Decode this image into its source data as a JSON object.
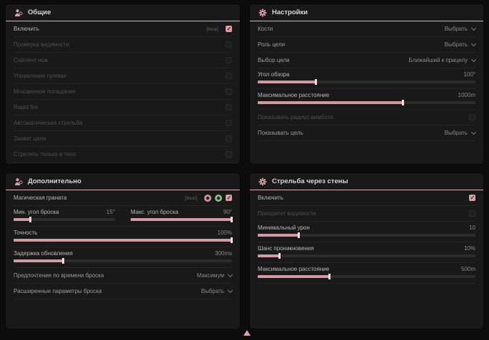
{
  "colors": {
    "accent": "#d79fa6",
    "accent_fill": "#d49ba2",
    "green_badge": "#82c47e",
    "panel_bg": "#191919",
    "page_bg": "#0c0c0c"
  },
  "general": {
    "title": "Общие",
    "items": [
      {
        "label": "Включить",
        "hint": "[вык]",
        "checked": true
      },
      {
        "label": "Проверка видимости",
        "checked": false
      },
      {
        "label": "Сайлент нож",
        "checked": false
      },
      {
        "label": "Управление пулями",
        "checked": false
      },
      {
        "label": "Мгновенное попадание",
        "checked": false
      },
      {
        "label": "Rapid fire",
        "checked": false
      },
      {
        "label": "Автоматическая стрельба",
        "checked": false
      },
      {
        "label": "Захват цели",
        "checked": false
      },
      {
        "label": "Стрелять только в тело",
        "checked": false
      }
    ]
  },
  "settings": {
    "title": "Настройки",
    "bones": {
      "label": "Кости",
      "value": "Выбрать"
    },
    "target_role": {
      "label": "Роль цели",
      "value": "Выбрать"
    },
    "target_select": {
      "label": "Выбор цели",
      "value": "Ближайший к прицелу"
    },
    "fov": {
      "label": "Угол обзора",
      "value": "100°",
      "percent": 27
    },
    "max_distance": {
      "label": "Максимальное расстояние",
      "value": "1000m",
      "percent": 67
    },
    "show_radius": {
      "label": "Показывать радиус аимбота",
      "checked": false
    },
    "show_target": {
      "label": "Показывать цель",
      "value": "Выбрать"
    }
  },
  "additional": {
    "title": "Дополнительно",
    "magic_grenade": {
      "label": "Магическая граната",
      "hint": "[вык]",
      "checked": true
    },
    "min_angle": {
      "label": "Мин. угол броска",
      "value": "15°",
      "percent": 17
    },
    "max_angle": {
      "label": "Макс. угол броска",
      "value": "90°",
      "percent": 100
    },
    "accuracy": {
      "label": "Точность",
      "value": "100%",
      "percent": 100
    },
    "update_delay": {
      "label": "Задержка обновления",
      "value": "300ms",
      "percent": 23
    },
    "throw_time_pref": {
      "label": "Предпочтение по времени броска",
      "value": "Максимум"
    },
    "advanced_throw": {
      "label": "Расширенные параметры броска",
      "value": "Выбрать"
    }
  },
  "wallbang": {
    "title": "Стрельба через стены",
    "enable": {
      "label": "Включить",
      "checked": true
    },
    "visibility_priority": {
      "label": "Приоритет видимости",
      "checked": false
    },
    "min_damage": {
      "label": "Минимальный урон",
      "value": "10",
      "percent": 19
    },
    "penetration_chance": {
      "label": "Шанс проникновения",
      "value": "10%",
      "percent": 10
    },
    "max_distance": {
      "label": "Максимальное расстояние",
      "value": "500m",
      "percent": 33
    }
  }
}
